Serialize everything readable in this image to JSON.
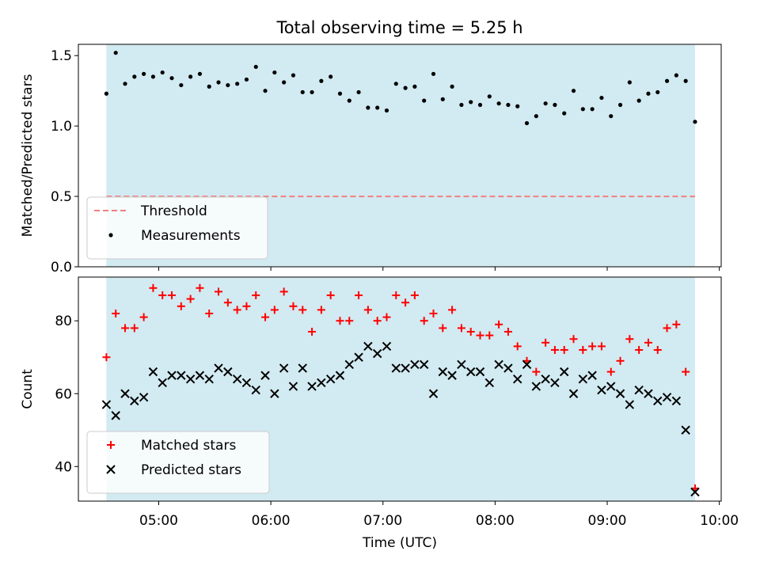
{
  "chart_data": [
    {
      "type": "scatter",
      "title": "Total observing time = 5.25 h",
      "ylabel": "Matched/Predicted stars",
      "xlabel": "",
      "xlim": [
        "04:17",
        "10:01"
      ],
      "ylim": [
        0,
        1.58
      ],
      "yticks": [
        0.0,
        0.5,
        1.0,
        1.5
      ],
      "ytick_labels": [
        "0.0",
        "0.5",
        "1.0",
        "1.5"
      ],
      "xticks": [
        "05:00",
        "06:00",
        "07:00",
        "08:00",
        "09:00",
        "10:00"
      ],
      "xtick_labels": [
        "",
        "",
        "",
        "",
        "",
        ""
      ],
      "shaded_span": {
        "from": "04:32",
        "to": "09:47",
        "color": "#add8e6"
      },
      "legend_position": "lower-left",
      "grid": false,
      "series": [
        {
          "name": "Threshold",
          "kind": "hline",
          "value": 0.5,
          "color": "#f08080",
          "style": "dashed"
        },
        {
          "name": "Measurements",
          "kind": "scatter",
          "marker": "dot",
          "color": "#000000",
          "x": [
            "04:32",
            "04:37",
            "04:42",
            "04:47",
            "04:52",
            "04:57",
            "05:02",
            "05:07",
            "05:12",
            "05:17",
            "05:22",
            "05:27",
            "05:32",
            "05:37",
            "05:42",
            "05:47",
            "05:52",
            "05:57",
            "06:02",
            "06:07",
            "06:12",
            "06:17",
            "06:22",
            "06:27",
            "06:32",
            "06:37",
            "06:42",
            "06:47",
            "06:52",
            "06:57",
            "07:02",
            "07:07",
            "07:12",
            "07:17",
            "07:22",
            "07:27",
            "07:32",
            "07:37",
            "07:42",
            "07:47",
            "07:52",
            "07:57",
            "08:02",
            "08:07",
            "08:12",
            "08:17",
            "08:22",
            "08:27",
            "08:32",
            "08:37",
            "08:42",
            "08:47",
            "08:52",
            "08:57",
            "09:02",
            "09:07",
            "09:12",
            "09:17",
            "09:22",
            "09:27",
            "09:32",
            "09:37",
            "09:42",
            "09:47"
          ],
          "y": [
            1.23,
            1.52,
            1.3,
            1.35,
            1.37,
            1.35,
            1.38,
            1.34,
            1.29,
            1.35,
            1.37,
            1.28,
            1.31,
            1.29,
            1.3,
            1.33,
            1.42,
            1.25,
            1.38,
            1.31,
            1.36,
            1.24,
            1.24,
            1.32,
            1.35,
            1.23,
            1.18,
            1.24,
            1.13,
            1.13,
            1.11,
            1.3,
            1.27,
            1.28,
            1.18,
            1.37,
            1.19,
            1.28,
            1.15,
            1.17,
            1.15,
            1.21,
            1.16,
            1.15,
            1.14,
            1.02,
            1.07,
            1.16,
            1.15,
            1.09,
            1.25,
            1.12,
            1.12,
            1.2,
            1.07,
            1.15,
            1.31,
            1.18,
            1.23,
            1.24,
            1.32,
            1.36,
            1.32,
            1.03
          ]
        }
      ]
    },
    {
      "type": "scatter",
      "title": "",
      "ylabel": "Count",
      "xlabel": "Time (UTC)",
      "xlim": [
        "04:17",
        "10:01"
      ],
      "ylim": [
        30.5,
        92
      ],
      "yticks": [
        40,
        60,
        80
      ],
      "ytick_labels": [
        "40",
        "60",
        "80"
      ],
      "xticks": [
        "05:00",
        "06:00",
        "07:00",
        "08:00",
        "09:00",
        "10:00"
      ],
      "xtick_labels": [
        "05:00",
        "06:00",
        "07:00",
        "08:00",
        "09:00",
        "10:00"
      ],
      "shaded_span": {
        "from": "04:32",
        "to": "09:47",
        "color": "#add8e6"
      },
      "legend_position": "lower-left",
      "grid": false,
      "series": [
        {
          "name": "Matched stars",
          "kind": "scatter",
          "marker": "plus",
          "color": "#ff0000",
          "x": [
            "04:32",
            "04:37",
            "04:42",
            "04:47",
            "04:52",
            "04:57",
            "05:02",
            "05:07",
            "05:12",
            "05:17",
            "05:22",
            "05:27",
            "05:32",
            "05:37",
            "05:42",
            "05:47",
            "05:52",
            "05:57",
            "06:02",
            "06:07",
            "06:12",
            "06:17",
            "06:22",
            "06:27",
            "06:32",
            "06:37",
            "06:42",
            "06:47",
            "06:52",
            "06:57",
            "07:02",
            "07:07",
            "07:12",
            "07:17",
            "07:22",
            "07:27",
            "07:32",
            "07:37",
            "07:42",
            "07:47",
            "07:52",
            "07:57",
            "08:02",
            "08:07",
            "08:12",
            "08:17",
            "08:22",
            "08:27",
            "08:32",
            "08:37",
            "08:42",
            "08:47",
            "08:52",
            "08:57",
            "09:02",
            "09:07",
            "09:12",
            "09:17",
            "09:22",
            "09:27",
            "09:32",
            "09:37",
            "09:42",
            "09:47"
          ],
          "y": [
            70,
            82,
            78,
            78,
            81,
            89,
            87,
            87,
            84,
            86,
            89,
            82,
            88,
            85,
            83,
            84,
            87,
            81,
            83,
            88,
            84,
            83,
            77,
            83,
            87,
            80,
            80,
            87,
            83,
            80,
            81,
            87,
            85,
            87,
            80,
            82,
            78,
            83,
            78,
            77,
            76,
            76,
            79,
            77,
            73,
            69,
            66,
            74,
            72,
            72,
            75,
            72,
            73,
            73,
            66,
            69,
            75,
            72,
            74,
            72,
            78,
            79,
            66,
            34
          ]
        },
        {
          "name": "Predicted stars",
          "kind": "scatter",
          "marker": "x",
          "color": "#000000",
          "x": [
            "04:32",
            "04:37",
            "04:42",
            "04:47",
            "04:52",
            "04:57",
            "05:02",
            "05:07",
            "05:12",
            "05:17",
            "05:22",
            "05:27",
            "05:32",
            "05:37",
            "05:42",
            "05:47",
            "05:52",
            "05:57",
            "06:02",
            "06:07",
            "06:12",
            "06:17",
            "06:22",
            "06:27",
            "06:32",
            "06:37",
            "06:42",
            "06:47",
            "06:52",
            "06:57",
            "07:02",
            "07:07",
            "07:12",
            "07:17",
            "07:22",
            "07:27",
            "07:32",
            "07:37",
            "07:42",
            "07:47",
            "07:52",
            "07:57",
            "08:02",
            "08:07",
            "08:12",
            "08:17",
            "08:22",
            "08:27",
            "08:32",
            "08:37",
            "08:42",
            "08:47",
            "08:52",
            "08:57",
            "09:02",
            "09:07",
            "09:12",
            "09:17",
            "09:22",
            "09:27",
            "09:32",
            "09:37",
            "09:42",
            "09:47"
          ],
          "y": [
            57,
            54,
            60,
            58,
            59,
            66,
            63,
            65,
            65,
            64,
            65,
            64,
            67,
            66,
            64,
            63,
            61,
            65,
            60,
            67,
            62,
            67,
            62,
            63,
            64,
            65,
            68,
            70,
            73,
            71,
            73,
            67,
            67,
            68,
            68,
            60,
            66,
            65,
            68,
            66,
            66,
            63,
            68,
            67,
            64,
            68,
            62,
            64,
            63,
            66,
            60,
            64,
            65,
            61,
            62,
            60,
            57,
            61,
            60,
            58,
            59,
            58,
            50,
            33
          ]
        }
      ]
    }
  ]
}
